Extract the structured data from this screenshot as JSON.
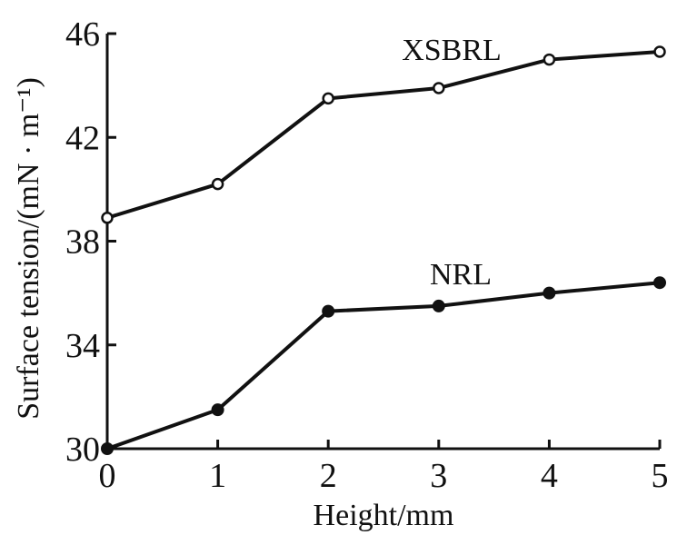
{
  "chart_data": {
    "type": "line",
    "title": "",
    "xlabel": "Height/mm",
    "ylabel": "Surface tension/(mN · m⁻¹)",
    "x": [
      0,
      1,
      2,
      3,
      4,
      5
    ],
    "xlim": [
      0,
      5
    ],
    "ylim": [
      30,
      46
    ],
    "xticks": [
      "0",
      "1",
      "2",
      "3",
      "4",
      "5"
    ],
    "yticks": [
      "30",
      "34",
      "38",
      "42",
      "46"
    ],
    "grid": false,
    "legend": "none",
    "series": [
      {
        "name": "XSBRL",
        "marker": "open-circle",
        "values": [
          38.9,
          40.2,
          43.5,
          43.9,
          45.0,
          45.3
        ]
      },
      {
        "name": "NRL",
        "marker": "filled-circle",
        "values": [
          30.0,
          31.5,
          35.3,
          35.5,
          36.0,
          36.4
        ]
      }
    ]
  }
}
